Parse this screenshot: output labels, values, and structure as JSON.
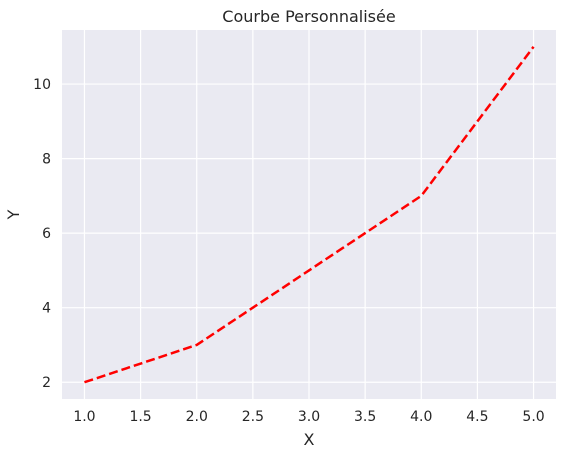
{
  "chart_data": {
    "type": "line",
    "title": "Courbe Personnalisée",
    "xlabel": "X",
    "ylabel": "Y",
    "xlim": [
      0.8,
      5.2
    ],
    "ylim": [
      1.55,
      11.45
    ],
    "xticks": [
      1.0,
      1.5,
      2.0,
      2.5,
      3.0,
      3.5,
      4.0,
      4.5,
      5.0
    ],
    "xtick_labels": [
      "1.0",
      "1.5",
      "2.0",
      "2.5",
      "3.0",
      "3.5",
      "4.0",
      "4.5",
      "5.0"
    ],
    "yticks": [
      2,
      4,
      6,
      8,
      10
    ],
    "ytick_labels": [
      "2",
      "4",
      "6",
      "8",
      "10"
    ],
    "grid": true,
    "legend": null,
    "series": [
      {
        "x": [
          1,
          2,
          3,
          4,
          5
        ],
        "y": [
          2,
          3,
          5,
          7,
          11
        ],
        "color": "#ff0000",
        "line_style": "dashed"
      }
    ],
    "colors": {
      "plot_background": "#eaeaf2",
      "grid": "#ffffff",
      "text": "#262626"
    }
  }
}
